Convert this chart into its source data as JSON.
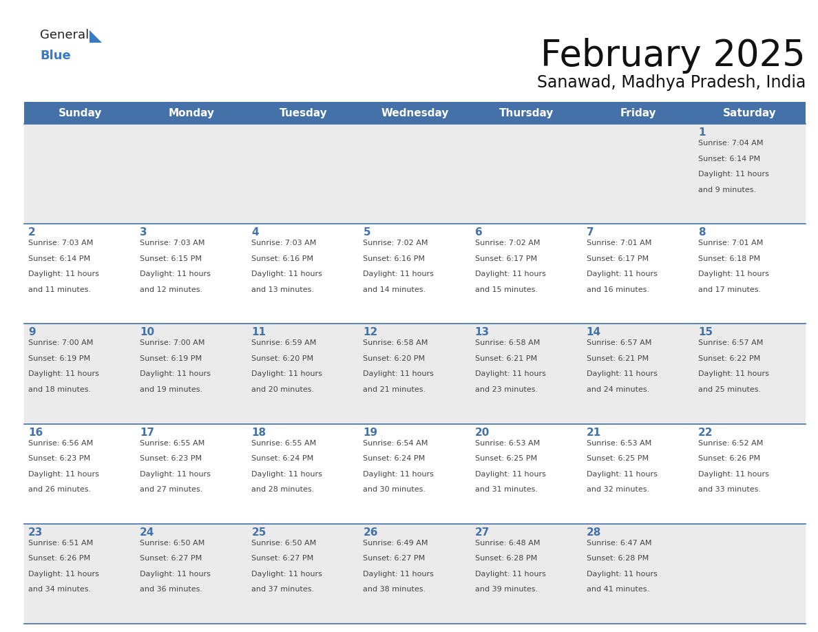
{
  "title": "February 2025",
  "subtitle": "Sanawad, Madhya Pradesh, India",
  "header_bg": "#4472a8",
  "header_text_color": "#ffffff",
  "day_names": [
    "Sunday",
    "Monday",
    "Tuesday",
    "Wednesday",
    "Thursday",
    "Friday",
    "Saturday"
  ],
  "row_bg_odd": "#ebebeb",
  "row_bg_even": "#ffffff",
  "cell_border_color": "#4472a8",
  "day_num_color": "#4472a8",
  "info_text_color": "#444444",
  "calendar": [
    [
      null,
      null,
      null,
      null,
      null,
      null,
      {
        "day": 1,
        "sunrise": "7:04 AM",
        "sunset": "6:14 PM",
        "daylight": "11 hours\nand 9 minutes."
      }
    ],
    [
      {
        "day": 2,
        "sunrise": "7:03 AM",
        "sunset": "6:14 PM",
        "daylight": "11 hours\nand 11 minutes."
      },
      {
        "day": 3,
        "sunrise": "7:03 AM",
        "sunset": "6:15 PM",
        "daylight": "11 hours\nand 12 minutes."
      },
      {
        "day": 4,
        "sunrise": "7:03 AM",
        "sunset": "6:16 PM",
        "daylight": "11 hours\nand 13 minutes."
      },
      {
        "day": 5,
        "sunrise": "7:02 AM",
        "sunset": "6:16 PM",
        "daylight": "11 hours\nand 14 minutes."
      },
      {
        "day": 6,
        "sunrise": "7:02 AM",
        "sunset": "6:17 PM",
        "daylight": "11 hours\nand 15 minutes."
      },
      {
        "day": 7,
        "sunrise": "7:01 AM",
        "sunset": "6:17 PM",
        "daylight": "11 hours\nand 16 minutes."
      },
      {
        "day": 8,
        "sunrise": "7:01 AM",
        "sunset": "6:18 PM",
        "daylight": "11 hours\nand 17 minutes."
      }
    ],
    [
      {
        "day": 9,
        "sunrise": "7:00 AM",
        "sunset": "6:19 PM",
        "daylight": "11 hours\nand 18 minutes."
      },
      {
        "day": 10,
        "sunrise": "7:00 AM",
        "sunset": "6:19 PM",
        "daylight": "11 hours\nand 19 minutes."
      },
      {
        "day": 11,
        "sunrise": "6:59 AM",
        "sunset": "6:20 PM",
        "daylight": "11 hours\nand 20 minutes."
      },
      {
        "day": 12,
        "sunrise": "6:58 AM",
        "sunset": "6:20 PM",
        "daylight": "11 hours\nand 21 minutes."
      },
      {
        "day": 13,
        "sunrise": "6:58 AM",
        "sunset": "6:21 PM",
        "daylight": "11 hours\nand 23 minutes."
      },
      {
        "day": 14,
        "sunrise": "6:57 AM",
        "sunset": "6:21 PM",
        "daylight": "11 hours\nand 24 minutes."
      },
      {
        "day": 15,
        "sunrise": "6:57 AM",
        "sunset": "6:22 PM",
        "daylight": "11 hours\nand 25 minutes."
      }
    ],
    [
      {
        "day": 16,
        "sunrise": "6:56 AM",
        "sunset": "6:23 PM",
        "daylight": "11 hours\nand 26 minutes."
      },
      {
        "day": 17,
        "sunrise": "6:55 AM",
        "sunset": "6:23 PM",
        "daylight": "11 hours\nand 27 minutes."
      },
      {
        "day": 18,
        "sunrise": "6:55 AM",
        "sunset": "6:24 PM",
        "daylight": "11 hours\nand 28 minutes."
      },
      {
        "day": 19,
        "sunrise": "6:54 AM",
        "sunset": "6:24 PM",
        "daylight": "11 hours\nand 30 minutes."
      },
      {
        "day": 20,
        "sunrise": "6:53 AM",
        "sunset": "6:25 PM",
        "daylight": "11 hours\nand 31 minutes."
      },
      {
        "day": 21,
        "sunrise": "6:53 AM",
        "sunset": "6:25 PM",
        "daylight": "11 hours\nand 32 minutes."
      },
      {
        "day": 22,
        "sunrise": "6:52 AM",
        "sunset": "6:26 PM",
        "daylight": "11 hours\nand 33 minutes."
      }
    ],
    [
      {
        "day": 23,
        "sunrise": "6:51 AM",
        "sunset": "6:26 PM",
        "daylight": "11 hours\nand 34 minutes."
      },
      {
        "day": 24,
        "sunrise": "6:50 AM",
        "sunset": "6:27 PM",
        "daylight": "11 hours\nand 36 minutes."
      },
      {
        "day": 25,
        "sunrise": "6:50 AM",
        "sunset": "6:27 PM",
        "daylight": "11 hours\nand 37 minutes."
      },
      {
        "day": 26,
        "sunrise": "6:49 AM",
        "sunset": "6:27 PM",
        "daylight": "11 hours\nand 38 minutes."
      },
      {
        "day": 27,
        "sunrise": "6:48 AM",
        "sunset": "6:28 PM",
        "daylight": "11 hours\nand 39 minutes."
      },
      {
        "day": 28,
        "sunrise": "6:47 AM",
        "sunset": "6:28 PM",
        "daylight": "11 hours\nand 41 minutes."
      },
      null
    ]
  ],
  "logo_general_color": "#222222",
  "logo_blue_color": "#3a7abf",
  "logo_triangle_color": "#3a7abf",
  "title_fontsize": 38,
  "subtitle_fontsize": 17,
  "header_fontsize": 11,
  "daynum_fontsize": 11,
  "info_fontsize": 8
}
